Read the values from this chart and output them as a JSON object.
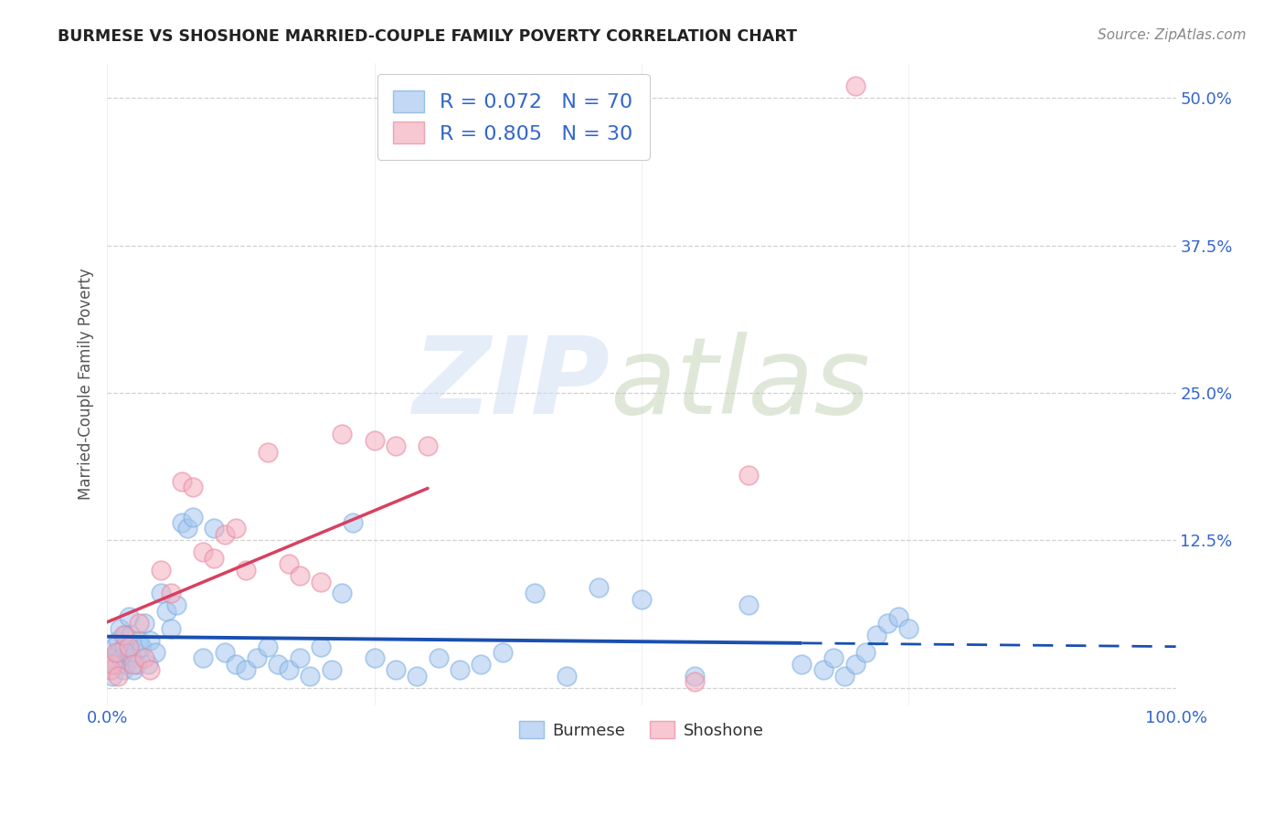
{
  "title": "BURMESE VS SHOSHONE MARRIED-COUPLE FAMILY POVERTY CORRELATION CHART",
  "source": "Source: ZipAtlas.com",
  "ylabel": "Married-Couple Family Poverty",
  "burmese_R": 0.072,
  "burmese_N": 70,
  "shoshone_R": 0.805,
  "shoshone_N": 30,
  "burmese_color_face": "#a8c8f0",
  "burmese_color_edge": "#7aaee0",
  "shoshone_color_face": "#f5b0c0",
  "shoshone_color_edge": "#e888a0",
  "burmese_line_color": "#1a4fb0",
  "shoshone_line_color": "#d84060",
  "xlim": [
    0,
    100
  ],
  "ylim": [
    -1.5,
    53
  ],
  "ytick_vals": [
    0,
    12.5,
    25.0,
    37.5,
    50.0
  ],
  "ytick_labels": [
    "",
    "12.5%",
    "25.0%",
    "37.5%",
    "50.0%"
  ],
  "xtick_vals": [
    0,
    25,
    50,
    75,
    100
  ],
  "xtick_labels": [
    "0.0%",
    "",
    "",
    "",
    "100.0%"
  ],
  "legend_line1": "R = 0.072   N = 70",
  "legend_line2": "R = 0.805   N = 30",
  "bottom_legend_labels": [
    "Burmese",
    "Shoshone"
  ],
  "tick_color": "#3366cc",
  "grid_color": "#cccccc",
  "title_color": "#222222",
  "source_color": "#888888",
  "ylabel_color": "#555555",
  "burmese_x": [
    0.3,
    0.5,
    0.7,
    0.8,
    1.0,
    1.1,
    1.2,
    1.3,
    1.5,
    1.6,
    1.7,
    1.8,
    2.0,
    2.1,
    2.2,
    2.3,
    2.5,
    2.6,
    2.8,
    3.0,
    3.2,
    3.5,
    3.8,
    4.0,
    4.5,
    5.0,
    5.5,
    6.0,
    6.5,
    7.0,
    7.5,
    8.0,
    9.0,
    10.0,
    11.0,
    12.0,
    13.0,
    14.0,
    15.0,
    16.0,
    17.0,
    18.0,
    19.0,
    20.0,
    21.0,
    22.0,
    23.0,
    25.0,
    27.0,
    29.0,
    31.0,
    33.0,
    35.0,
    37.0,
    40.0,
    43.0,
    46.0,
    50.0,
    55.0,
    60.0,
    65.0,
    67.0,
    68.0,
    69.0,
    70.0,
    71.0,
    72.0,
    73.0,
    74.0,
    75.0
  ],
  "burmese_y": [
    2.5,
    1.0,
    3.5,
    2.0,
    4.0,
    3.0,
    5.0,
    2.5,
    1.5,
    3.5,
    4.5,
    2.0,
    6.0,
    3.0,
    4.5,
    2.5,
    1.5,
    3.0,
    2.0,
    4.0,
    3.5,
    5.5,
    2.0,
    4.0,
    3.0,
    8.0,
    6.5,
    5.0,
    7.0,
    14.0,
    13.5,
    14.5,
    2.5,
    13.5,
    3.0,
    2.0,
    1.5,
    2.5,
    3.5,
    2.0,
    1.5,
    2.5,
    1.0,
    3.5,
    1.5,
    8.0,
    14.0,
    2.5,
    1.5,
    1.0,
    2.5,
    1.5,
    2.0,
    3.0,
    8.0,
    1.0,
    8.5,
    7.5,
    1.0,
    7.0,
    2.0,
    1.5,
    2.5,
    1.0,
    2.0,
    3.0,
    4.5,
    5.5,
    6.0,
    5.0
  ],
  "shoshone_x": [
    0.3,
    0.5,
    0.8,
    1.0,
    1.5,
    2.0,
    2.5,
    3.0,
    3.5,
    4.0,
    5.0,
    6.0,
    7.0,
    8.0,
    9.0,
    10.0,
    11.0,
    12.0,
    13.0,
    15.0,
    17.0,
    18.0,
    20.0,
    22.0,
    25.0,
    27.0,
    30.0,
    55.0,
    60.0,
    70.0
  ],
  "shoshone_y": [
    1.5,
    2.0,
    3.0,
    1.0,
    4.5,
    3.5,
    2.0,
    5.5,
    2.5,
    1.5,
    10.0,
    8.0,
    17.5,
    17.0,
    11.5,
    11.0,
    13.0,
    13.5,
    10.0,
    20.0,
    10.5,
    9.5,
    9.0,
    21.5,
    21.0,
    20.5,
    20.5,
    0.5,
    18.0,
    51.0
  ]
}
